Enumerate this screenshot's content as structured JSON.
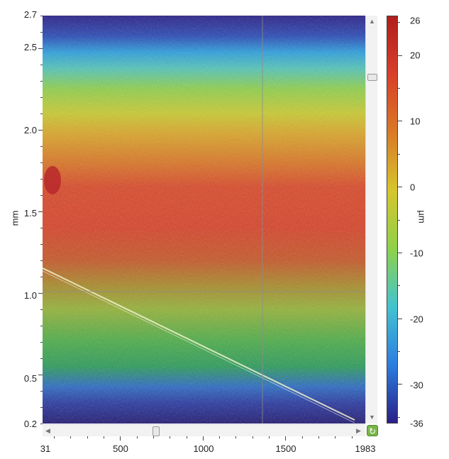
{
  "y_axis": {
    "title": "mm",
    "ticks": [
      "2.7",
      "2.5",
      "2.0",
      "1.5",
      "1.0",
      "0.5",
      "0.2"
    ]
  },
  "x_axis": {
    "ticks": [
      "31",
      "500",
      "1000",
      "1500",
      "1983"
    ]
  },
  "colorbar": {
    "title": "µm",
    "ticks": [
      "26",
      "20",
      "10",
      "0",
      "-10",
      "-20",
      "-30",
      "-36"
    ]
  },
  "scrollbars": {
    "up_icon": "arrow-up-icon",
    "down_icon": "arrow-down-icon",
    "left_icon": "arrow-left-icon",
    "right_icon": "arrow-right-icon",
    "reset_icon": "refresh-icon"
  },
  "chart_data": {
    "type": "heatmap",
    "x_range": [
      31,
      1983
    ],
    "y_range": [
      0.2,
      2.7
    ],
    "z_range": [
      -36,
      26
    ],
    "colormap": [
      "#2a1f86",
      "#2c7de0",
      "#43c3d0",
      "#8fd14a",
      "#d6c52d",
      "#d97a26",
      "#d8402a",
      "#b01e1e"
    ],
    "crosshair": {
      "x": 1363,
      "y": 1.02
    }
  }
}
